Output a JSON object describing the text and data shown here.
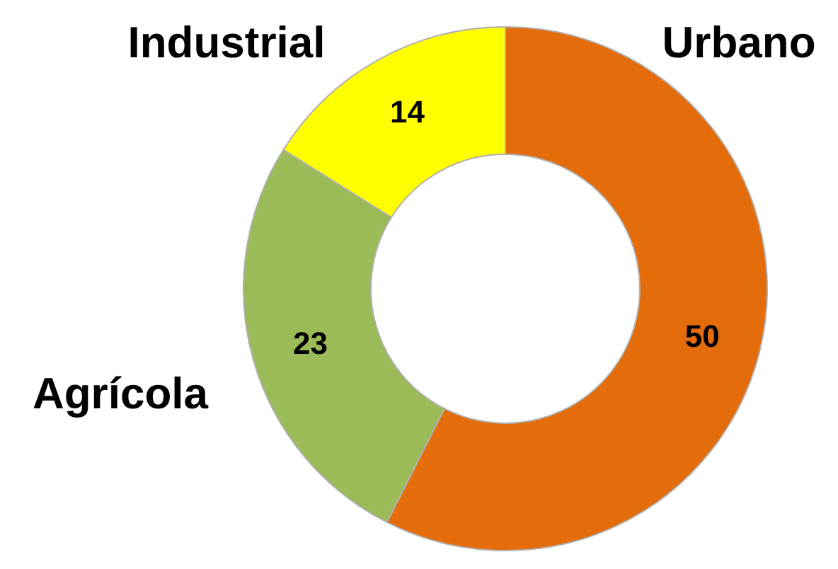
{
  "chart_data": {
    "type": "donut",
    "categories": [
      "Urbano",
      "Agrícola",
      "Industrial"
    ],
    "values": [
      50,
      23,
      14
    ],
    "colors": [
      "#e46c0a",
      "#9bbb59",
      "#ffff00"
    ],
    "data_labels": true,
    "legend": false
  }
}
